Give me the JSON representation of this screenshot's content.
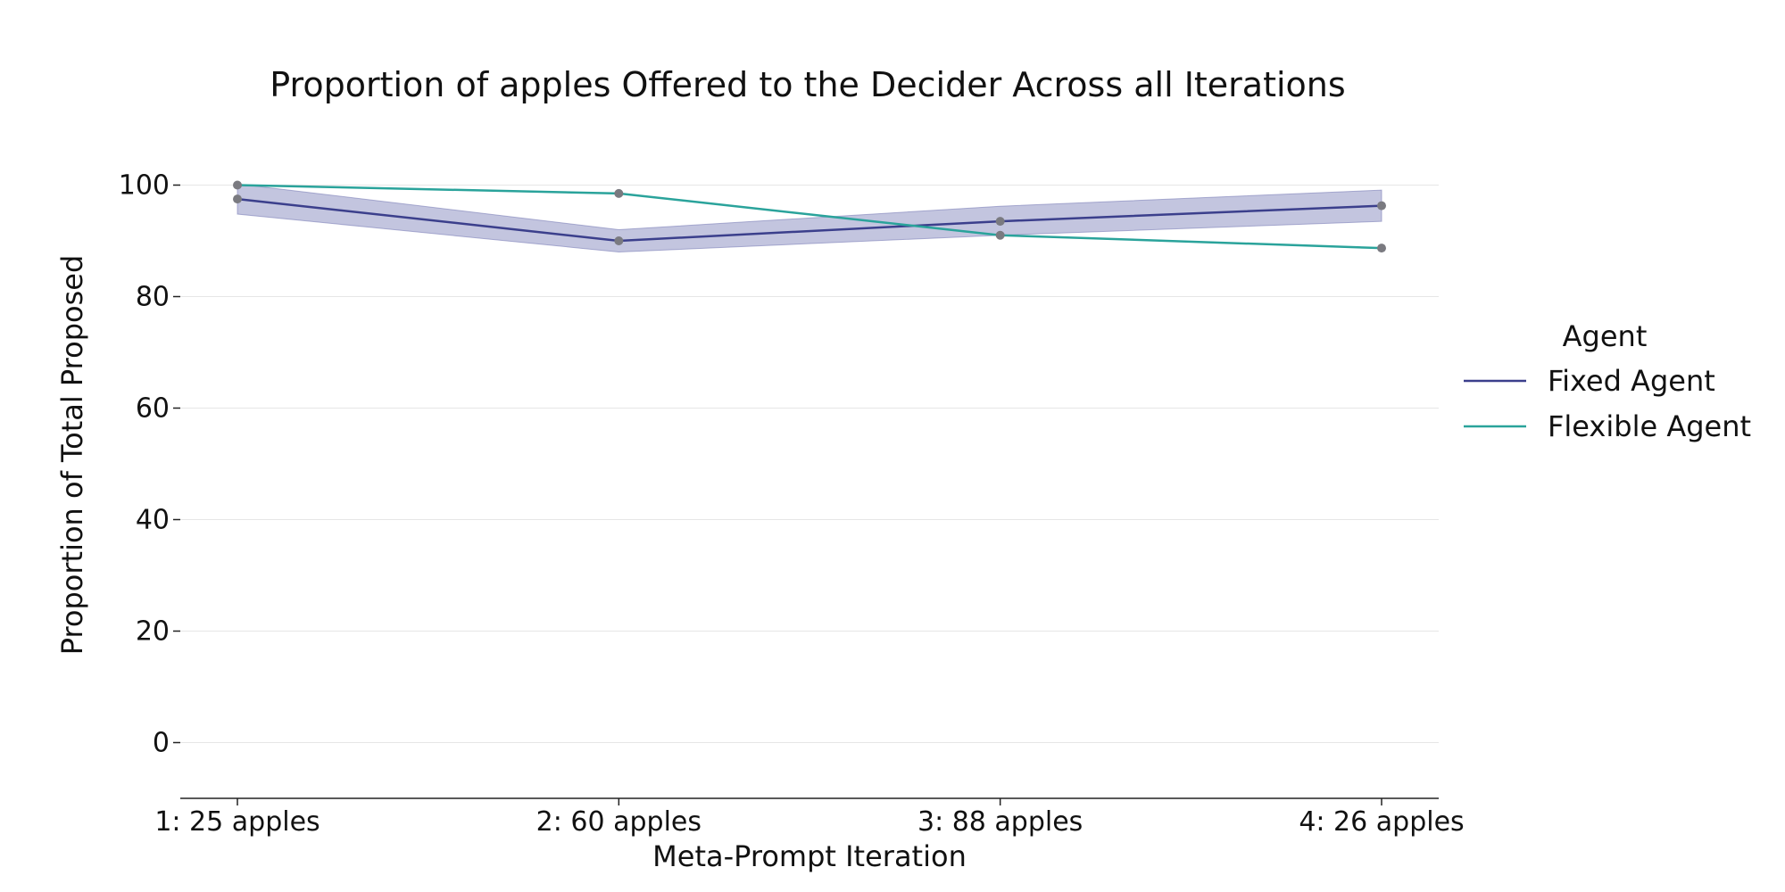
{
  "chart_data": {
    "type": "line",
    "title": "Proportion of apples Offered to the Decider Across all Iterations",
    "xlabel": "Meta-Prompt Iteration",
    "ylabel": "Proportion of Total Proposed",
    "categories": [
      "1: 25 apples",
      "2: 60 apples",
      "3: 88 apples",
      "4: 26 apples"
    ],
    "yticks": [
      "0",
      "20",
      "40",
      "60",
      "80",
      "100"
    ],
    "ylim": [
      -10,
      110
    ],
    "grid": true,
    "legend": {
      "title": "Agent",
      "placement": "right"
    },
    "series": [
      {
        "name": "Fixed Agent",
        "color": "#3b3f8c",
        "values": [
          97.5,
          90,
          93.5,
          96.3
        ],
        "ci_lower": [
          94.8,
          88,
          91,
          93.5
        ],
        "ci_upper": [
          100.2,
          92,
          96.2,
          99.1
        ],
        "band_color": "#7b7fb8"
      },
      {
        "name": "Flexible Agent",
        "color": "#2aa39b",
        "values": [
          100,
          98.5,
          91,
          88.7
        ]
      }
    ],
    "marker_color": "#7a7a80"
  }
}
